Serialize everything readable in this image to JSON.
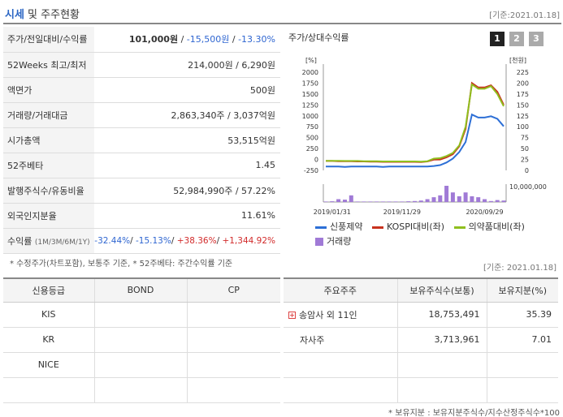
{
  "header": {
    "title_strong": "시세",
    "title_rest": " 및 주주현황",
    "date": "[기준:2021.01.18]"
  },
  "price_table": {
    "rows": [
      {
        "label": "주가/전일대비/수익률",
        "value": ""
      },
      {
        "label": "52Weeks 최고/최저",
        "value": "214,000원 / 6,290원"
      },
      {
        "label": "액면가",
        "value": "500원"
      },
      {
        "label": "거래량/거래대금",
        "value": "2,863,340주 / 3,037억원"
      },
      {
        "label": "시가총액",
        "value": "53,515억원"
      },
      {
        "label": "52주베타",
        "value": "1.45"
      },
      {
        "label": "발행주식수/유동비율",
        "value": "52,984,990주 / 57.22%"
      },
      {
        "label": "외국인지분율",
        "value": "11.61%"
      }
    ],
    "price": {
      "current": "101,000원",
      "change": "-15,500원",
      "rate": "-13.30%",
      "sep": " / "
    },
    "returns": {
      "label": "수익률",
      "periods": "(1M/3M/6M/1Y)",
      "m1": "-32.44%",
      "m3": "-15.13%",
      "m6": "+38.36%",
      "y1": "+1,344.92%",
      "sep": "/ "
    }
  },
  "note1": "* 수정주가(차트포함), 보통주 기준, * 52주베타: 주간수익률 기준",
  "chart": {
    "title": "주가/상대수익률",
    "pages": [
      "1",
      "2",
      "3"
    ],
    "left_unit": "[%]",
    "right_unit": "[천원]",
    "volume_label": "10,000,000",
    "legend": {
      "company": "신풍제약",
      "kospi": "KOSPI대비(좌)",
      "sector": "의약품대비(좌)",
      "volume": "거래량"
    },
    "colors": {
      "company": "#2d6fd6",
      "kospi": "#c8321e",
      "sector": "#8fbf1e",
      "volume": "#a07ad6"
    }
  },
  "chart_data": {
    "type": "line",
    "x_tick_labels": [
      "2019/01/31",
      "2019/11/29",
      "2020/09/29"
    ],
    "left_axis": {
      "unit": "[%]",
      "ticks": [
        -250,
        0,
        250,
        500,
        750,
        1000,
        1250,
        1500,
        1750,
        2000
      ],
      "range": [
        -250,
        2000
      ]
    },
    "right_axis": {
      "unit": "[천원]",
      "ticks": [
        0,
        25,
        50,
        75,
        100,
        125,
        150,
        175,
        200,
        225
      ],
      "range": [
        0,
        225
      ]
    },
    "volume_axis": {
      "label": "10,000,000"
    },
    "series": [
      {
        "name": "신풍제약",
        "axis": "right",
        "values": [
          9,
          9,
          9,
          8,
          9,
          9,
          9,
          9,
          9,
          8,
          9,
          9,
          9,
          9,
          9,
          9,
          9,
          10,
          12,
          18,
          27,
          42,
          65,
          128,
          121,
          121,
          124,
          118,
          101
        ]
      },
      {
        "name": "KOSPI대비(좌)",
        "axis": "left",
        "values": [
          -35,
          -35,
          -40,
          -42,
          -40,
          -45,
          -45,
          -50,
          -50,
          -55,
          -55,
          -55,
          -55,
          -55,
          -55,
          -60,
          -45,
          -5,
          0,
          50,
          120,
          300,
          700,
          1750,
          1650,
          1650,
          1700,
          1550,
          1250
        ]
      },
      {
        "name": "의약품대비(좌)",
        "axis": "left",
        "values": [
          -30,
          -30,
          -30,
          -35,
          -35,
          -35,
          -40,
          -40,
          -40,
          -45,
          -45,
          -45,
          -45,
          -45,
          -45,
          -50,
          -40,
          20,
          30,
          80,
          150,
          320,
          750,
          1720,
          1620,
          1620,
          1680,
          1500,
          1220
        ]
      },
      {
        "name": "거래량",
        "axis": "volume",
        "values": [
          0.05,
          0.08,
          0.3,
          0.25,
          0.7,
          0.05,
          0.05,
          0.05,
          0.05,
          0.05,
          0.05,
          0.05,
          0.05,
          0.08,
          0.1,
          0.15,
          0.3,
          0.5,
          0.7,
          1.7,
          1.0,
          0.6,
          1.0,
          0.6,
          0.5,
          0.3,
          0.1,
          0.2,
          0.15
        ]
      }
    ]
  },
  "date2": "[기준: 2021.01.18]",
  "credit": {
    "headers": [
      "신용등급",
      "BOND",
      "CP"
    ],
    "rows": [
      [
        "KIS",
        "",
        ""
      ],
      [
        "KR",
        "",
        ""
      ],
      [
        "NICE",
        "",
        ""
      ],
      [
        "",
        "",
        ""
      ]
    ]
  },
  "holders": {
    "headers": [
      "주요주주",
      "보유주식수(보통)",
      "보유지분(%)"
    ],
    "rows": [
      {
        "name": "송암사 외 11인",
        "shares": "18,753,491",
        "pct": "35.39"
      },
      {
        "name": "자사주",
        "shares": "3,713,961",
        "pct": "7.01"
      }
    ]
  },
  "note2": "* 보유지분 : 보유지분주식수/지수산정주식수*100"
}
